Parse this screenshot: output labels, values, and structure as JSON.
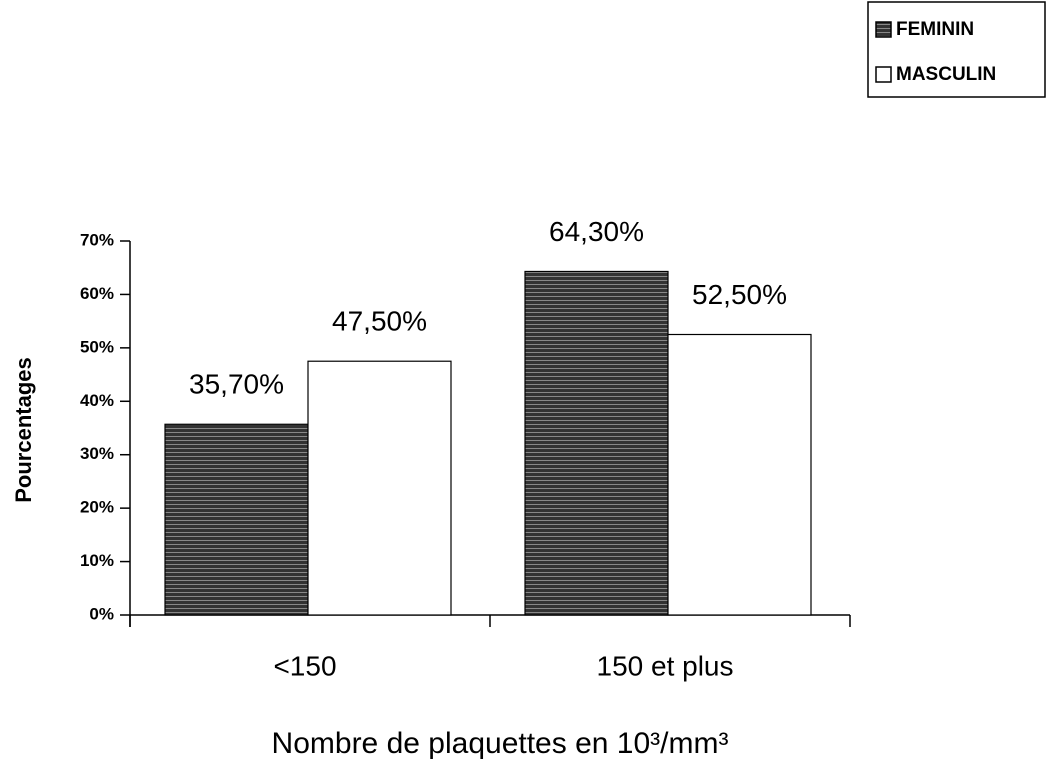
{
  "chart_data": {
    "type": "bar",
    "x_label": "Nombre de plaquettes en 10³/mm³",
    "y_label": "Pourcentages",
    "categories": [
      "<150",
      "150 et plus"
    ],
    "series": [
      {
        "name": "FEMININ",
        "color": "#333333",
        "values": [
          35.7,
          64.3
        ],
        "value_labels": [
          "35,70%",
          "64,30%"
        ]
      },
      {
        "name": "MASCULIN",
        "color": "#ffffff",
        "values": [
          47.5,
          52.5
        ],
        "value_labels": [
          "47,50%",
          "52,50%"
        ]
      }
    ],
    "ylim": [
      0,
      70
    ],
    "yticks": [
      {
        "value": 0,
        "label": "0%"
      },
      {
        "value": 10,
        "label": "10%"
      },
      {
        "value": 20,
        "label": "20%"
      },
      {
        "value": 30,
        "label": "30%"
      },
      {
        "value": 40,
        "label": "40%"
      },
      {
        "value": 50,
        "label": "50%"
      },
      {
        "value": 60,
        "label": "60%"
      },
      {
        "value": 70,
        "label": "70%"
      }
    ],
    "legend": "upper right"
  }
}
